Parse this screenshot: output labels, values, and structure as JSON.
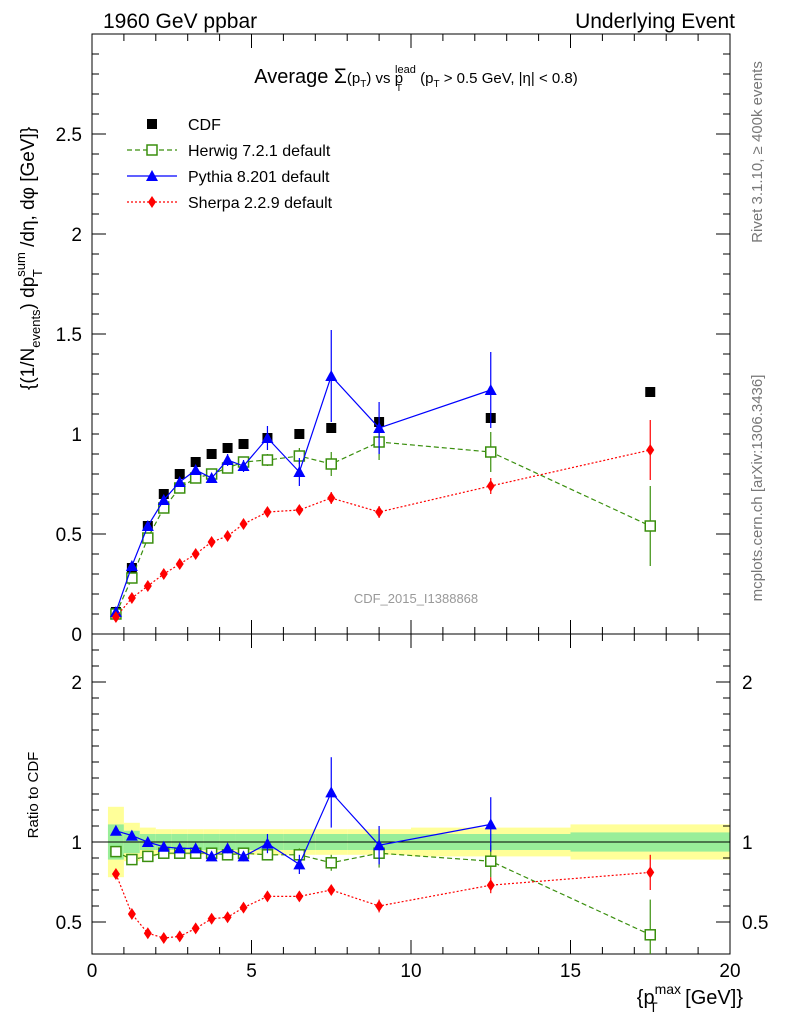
{
  "header": {
    "left": "1960 GeV ppbar",
    "right": "Underlying Event"
  },
  "side_text": {
    "rivet": "Rivet 3.1.10, ≥ 400k events",
    "mcplots": "mcplots.cern.ch [arXiv:1306.3436]"
  },
  "chart_data": {
    "type": "scatter",
    "title": {
      "part1": "Average ",
      "sigma": "Σ",
      "arg_open": "(p",
      "arg_sub": "T",
      "arg_close": ")",
      "vs": " vs p",
      "vs_sup": "lead",
      "vs_sub": "T",
      "cut_open": " (p",
      "cut_sub": "T",
      "cut_rest": " > 0.5 GeV, |η| < 0.8)"
    },
    "watermark": "CDF_2015_I1388868",
    "ylabel": {
      "p1": "{(1/N",
      "p1_sub": "events",
      "p2": ") dp",
      "p2_sup": "sum",
      "p2_sub": "T",
      "p3": " /dη, dφ [GeV]}"
    },
    "ratio_ylabel": "Ratio to CDF",
    "xlabel": {
      "p1": "{p",
      "sup": "max",
      "sub": "T",
      "p2": " [GeV]}"
    },
    "xlim": [
      0,
      20
    ],
    "main_ylim": [
      0,
      3.0
    ],
    "ratio_ylim": [
      0.3,
      2.3
    ],
    "x_ticks": [
      "0",
      "5",
      "10",
      "15",
      "20"
    ],
    "main_y_ticks": [
      "0",
      "0.5",
      "1",
      "1.5",
      "2",
      "2.5"
    ],
    "ratio_y_ticks": [
      "0.5",
      "1",
      "2"
    ],
    "bin_edges": [
      0.5,
      1.0,
      1.5,
      2.0,
      2.5,
      3.0,
      3.5,
      4.0,
      4.5,
      5.0,
      6.0,
      7.0,
      8.0,
      10.0,
      15.0,
      20.0
    ],
    "ratio_band_inner": [
      0.11,
      0.07,
      0.05,
      0.05,
      0.05,
      0.05,
      0.05,
      0.05,
      0.05,
      0.05,
      0.05,
      0.05,
      0.05,
      0.05,
      0.06
    ],
    "ratio_band_outer": [
      0.22,
      0.12,
      0.09,
      0.08,
      0.08,
      0.08,
      0.08,
      0.08,
      0.08,
      0.08,
      0.08,
      0.08,
      0.08,
      0.09,
      0.11
    ],
    "series": [
      {
        "name": "CDF",
        "color": "#000000",
        "marker": "square",
        "line": "none",
        "x": [
          0.75,
          1.25,
          1.75,
          2.25,
          2.75,
          3.25,
          3.75,
          4.25,
          4.75,
          5.5,
          6.5,
          7.5,
          9.0,
          12.5,
          17.5
        ],
        "y": [
          0.11,
          0.33,
          0.54,
          0.7,
          0.8,
          0.86,
          0.9,
          0.93,
          0.95,
          0.98,
          1.0,
          1.03,
          1.06,
          1.08,
          1.21
        ],
        "err": [
          0,
          0,
          0,
          0,
          0,
          0,
          0,
          0,
          0,
          0,
          0,
          0,
          0,
          0,
          0
        ],
        "ratio": [
          1,
          1,
          1,
          1,
          1,
          1,
          1,
          1,
          1,
          1,
          1,
          1,
          1,
          1,
          1
        ],
        "ratio_err": [
          0,
          0,
          0,
          0,
          0,
          0,
          0,
          0,
          0,
          0,
          0,
          0,
          0,
          0,
          0
        ]
      },
      {
        "name": "Herwig 7.2.1 default",
        "color": "#3a8f0e",
        "marker": "open-square",
        "line": "dashed",
        "x": [
          0.75,
          1.25,
          1.75,
          2.25,
          2.75,
          3.25,
          3.75,
          4.25,
          4.75,
          5.5,
          6.5,
          7.5,
          9.0,
          12.5,
          17.5
        ],
        "y": [
          0.1,
          0.28,
          0.48,
          0.63,
          0.73,
          0.78,
          0.8,
          0.83,
          0.86,
          0.87,
          0.89,
          0.85,
          0.96,
          0.91,
          0.54
        ],
        "err": [
          0,
          0,
          0,
          0,
          0,
          0,
          0.02,
          0.02,
          0.02,
          0.03,
          0.04,
          0.06,
          0.09,
          0.1,
          0.2
        ],
        "ratio": [
          0.94,
          0.89,
          0.91,
          0.93,
          0.93,
          0.93,
          0.93,
          0.92,
          0.93,
          0.92,
          0.92,
          0.87,
          0.93,
          0.88,
          0.42
        ],
        "ratio_err": [
          0,
          0,
          0,
          0,
          0,
          0,
          0.02,
          0.02,
          0.02,
          0.02,
          0.04,
          0.05,
          0.09,
          0.1,
          0.22
        ]
      },
      {
        "name": "Pythia 8.201 default",
        "color": "#0000ff",
        "marker": "triangle",
        "line": "solid",
        "x": [
          0.75,
          1.25,
          1.75,
          2.25,
          2.75,
          3.25,
          3.75,
          4.25,
          4.75,
          5.5,
          6.5,
          7.5,
          9.0,
          12.5,
          17.5
        ],
        "y": [
          0.11,
          0.34,
          0.54,
          0.67,
          0.76,
          0.82,
          0.78,
          0.87,
          0.84,
          0.98,
          0.81,
          1.29,
          1.03,
          1.22,
          null
        ],
        "err": [
          0,
          0,
          0,
          0,
          0.01,
          0.02,
          0.02,
          0.03,
          0.03,
          0.06,
          0.07,
          0.23,
          0.13,
          0.19,
          0
        ],
        "ratio": [
          1.07,
          1.04,
          1.0,
          0.97,
          0.96,
          0.96,
          0.91,
          0.96,
          0.91,
          0.99,
          0.86,
          1.31,
          0.98,
          1.11,
          null
        ],
        "ratio_err": [
          0,
          0,
          0,
          0,
          0.01,
          0.02,
          0.02,
          0.03,
          0.03,
          0.06,
          0.06,
          0.22,
          0.12,
          0.17,
          0
        ]
      },
      {
        "name": "Sherpa 2.2.9 default",
        "color": "#ff0000",
        "marker": "diamond",
        "line": "dotted",
        "x": [
          0.75,
          1.25,
          1.75,
          2.25,
          2.75,
          3.25,
          3.75,
          4.25,
          4.75,
          5.5,
          6.5,
          7.5,
          9.0,
          12.5,
          17.5
        ],
        "y": [
          0.085,
          0.18,
          0.24,
          0.3,
          0.35,
          0.4,
          0.46,
          0.49,
          0.55,
          0.61,
          0.62,
          0.68,
          0.61,
          0.74,
          0.92
        ],
        "err": [
          0,
          0,
          0,
          0,
          0,
          0,
          0,
          0,
          0,
          0.01,
          0.02,
          0.03,
          0.03,
          0.04,
          0.15
        ],
        "ratio": [
          0.8,
          0.55,
          0.43,
          0.4,
          0.41,
          0.46,
          0.52,
          0.53,
          0.59,
          0.66,
          0.66,
          0.7,
          0.6,
          0.73,
          0.81
        ],
        "ratio_err": [
          0,
          0,
          0,
          0,
          0,
          0.02,
          0.02,
          0.02,
          0.02,
          0.02,
          0.03,
          0.03,
          0.04,
          0.05,
          0.11
        ]
      }
    ]
  }
}
